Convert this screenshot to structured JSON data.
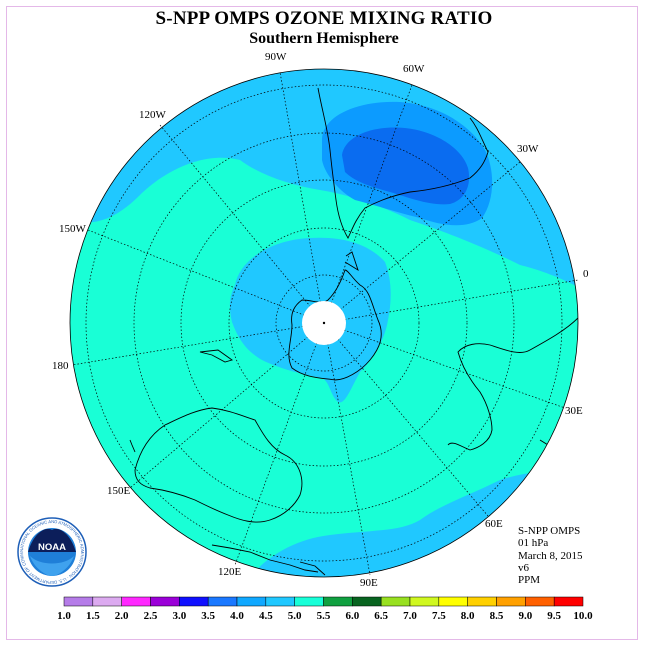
{
  "title": "S-NPP OMPS OZONE MIXING RATIO",
  "subtitle": "Southern Hemisphere",
  "info": {
    "instrument": "S-NPP OMPS",
    "level": "01 hPa",
    "date": "March 8, 2015",
    "version": "v6",
    "units": "PPM"
  },
  "logo": {
    "text": "NOAA",
    "ring_text": "NATIONAL OCEANIC AND ATMOSPHERIC ADMINISTRATION · U.S. DEPARTMENT OF COMMERCE"
  },
  "longitude_labels": [
    {
      "id": "90w",
      "text": "90W"
    },
    {
      "id": "60w",
      "text": "60W"
    },
    {
      "id": "30w",
      "text": "30W"
    },
    {
      "id": "0",
      "text": "0"
    },
    {
      "id": "30e",
      "text": "30E"
    },
    {
      "id": "60e",
      "text": "60E"
    },
    {
      "id": "90e",
      "text": "90E"
    },
    {
      "id": "120e",
      "text": "120E"
    },
    {
      "id": "150e",
      "text": "150E"
    },
    {
      "id": "180",
      "text": "180"
    },
    {
      "id": "150w",
      "text": "150W"
    },
    {
      "id": "120w",
      "text": "120W"
    }
  ],
  "colorbar": {
    "ticks": [
      "1.0",
      "1.5",
      "2.0",
      "2.5",
      "3.0",
      "3.5",
      "4.0",
      "4.5",
      "5.0",
      "5.5",
      "6.0",
      "6.5",
      "7.0",
      "7.5",
      "8.0",
      "8.5",
      "9.0",
      "9.5",
      "10.0"
    ],
    "colors": [
      "#b57ce8",
      "#dcaaf0",
      "#ff28ff",
      "#9b00d8",
      "#1010ff",
      "#1a78ff",
      "#10a8ff",
      "#20c8ff",
      "#18ffd8",
      "#10a040",
      "#086420",
      "#98e020",
      "#d0f820",
      "#ffff00",
      "#ffd000",
      "#ffa000",
      "#ff6000",
      "#ff0000",
      "#804020"
    ],
    "colors_note": "",
    "ppm_bins": 18
  },
  "colors": {
    "bg_low": "#19ffd6",
    "level_4_0": "#20c8ff",
    "level_3_5": "#0c9bff",
    "level_3_0": "#0a6cf0"
  }
}
